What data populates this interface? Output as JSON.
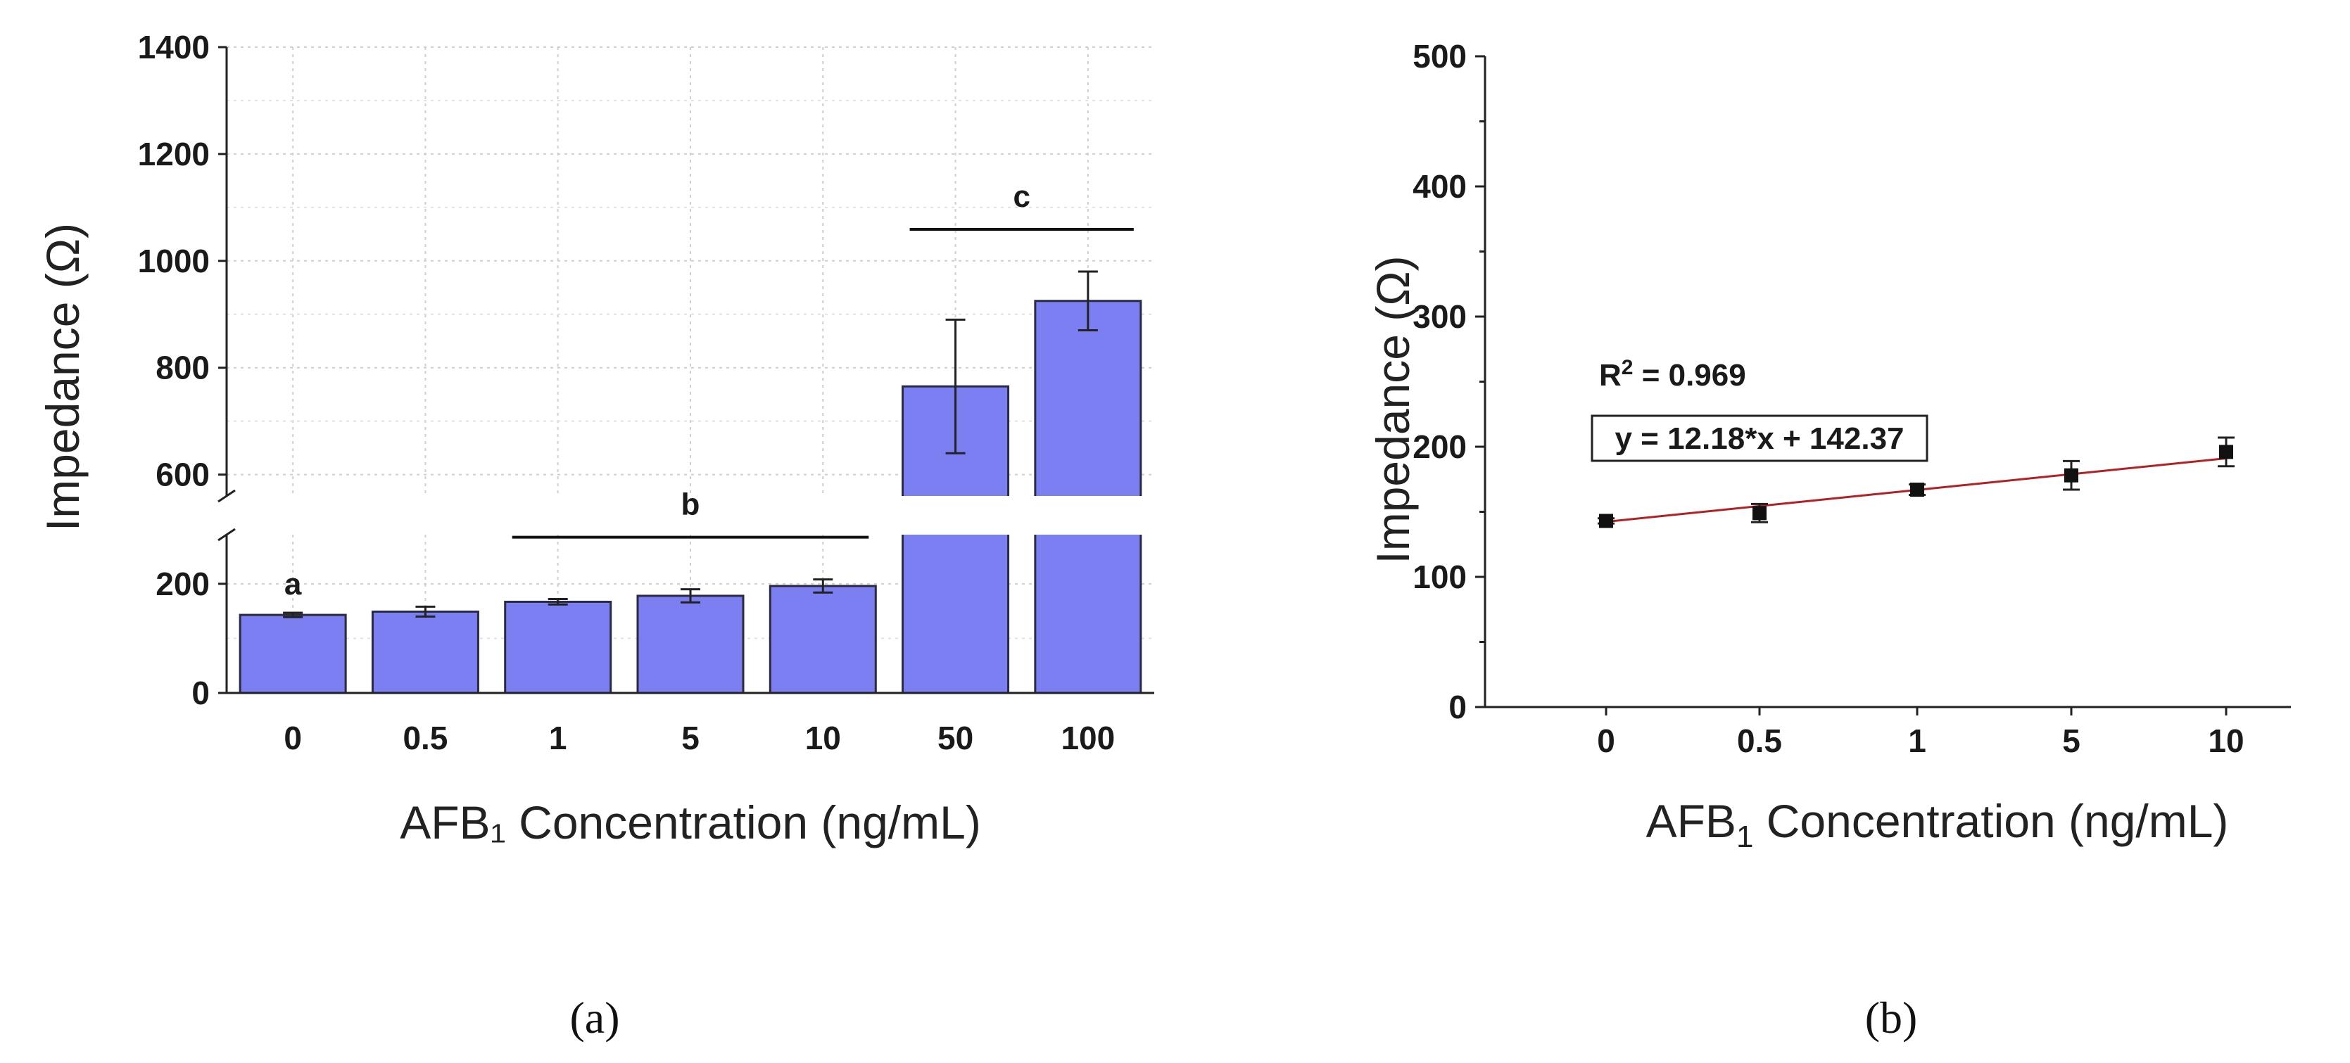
{
  "chart_data": [
    {
      "panel": "a",
      "panel_label": "(a)",
      "type": "bar",
      "categories": [
        "0",
        "0.5",
        "1",
        "5",
        "10",
        "50",
        "100"
      ],
      "values": [
        143,
        149,
        167,
        178,
        196,
        765,
        925
      ],
      "errors": [
        4,
        9,
        5,
        12,
        12,
        125,
        55
      ],
      "xlabel": "AFB₁ Concentration (ng/mL)",
      "ylabel": "Impedance (Ω)",
      "axis_break": true,
      "ylim_lower": [
        0,
        290
      ],
      "ylim_upper": [
        560,
        1400
      ],
      "yticks_lower": [
        "0",
        "200"
      ],
      "yticks_upper": [
        "600",
        "800",
        "1000",
        "1200",
        "1400"
      ],
      "bar_color": "#7b7ff2",
      "groups": [
        {
          "label": "a",
          "from": 0,
          "to": 0
        },
        {
          "label": "b",
          "from": 2,
          "to": 4
        },
        {
          "label": "c",
          "from": 5,
          "to": 6
        }
      ]
    },
    {
      "panel": "b",
      "panel_label": "(b)",
      "type": "scatter",
      "categories": [
        "0",
        "0.5",
        "1",
        "5",
        "10"
      ],
      "values": [
        143,
        149,
        167,
        178,
        196
      ],
      "errors": [
        2,
        7,
        4,
        11,
        11
      ],
      "xlabel": "AFB",
      "xlabel_sub": "1",
      "xlabel_rest": " Concentration (ng/mL)",
      "ylabel": "Impedance (Ω)",
      "ylim": [
        0,
        500
      ],
      "yticks": [
        "0",
        "100",
        "200",
        "300",
        "400",
        "500"
      ],
      "r2_label": "R",
      "r2_sup": "2",
      "r2_value": " = 0.969",
      "equation": "y = 12.18*x + 142.37",
      "fit": {
        "slope": 12.18,
        "intercept": 142.37
      },
      "fit_color": "#b22222"
    }
  ]
}
